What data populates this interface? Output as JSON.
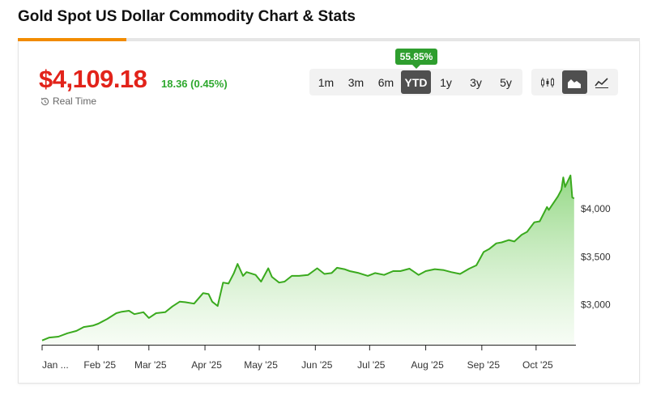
{
  "page": {
    "title": "Gold Spot US Dollar Commodity Chart & Stats"
  },
  "quote": {
    "price": "$4,109.18",
    "change": "18.36 (0.45%)",
    "realtime_label": "Real Time"
  },
  "range_selector": {
    "options": [
      "1m",
      "3m",
      "6m",
      "YTD",
      "1y",
      "3y",
      "5y"
    ],
    "selected": "YTD",
    "badge": "55.85%"
  },
  "chart_type_buttons": [
    {
      "icon": "candlestick-icon",
      "active": false
    },
    {
      "icon": "area-chart-icon",
      "active": true
    },
    {
      "icon": "line-chart-icon",
      "active": false
    }
  ],
  "colors": {
    "price": "#e2231a",
    "change": "#2ea82e",
    "line": "#3aaa1e",
    "fill_top": "#8fd67f",
    "active_button": "#4f4f4f",
    "accent": "#f28c00"
  },
  "chart_data": {
    "type": "area",
    "title": "",
    "xlabel": "",
    "ylabel": "",
    "x_tick_labels": [
      "Jan ...",
      "Feb '25",
      "Mar '25",
      "Apr '25",
      "May '25",
      "Jun '25",
      "Jul '25",
      "Aug '25",
      "Sep '25",
      "Oct '25"
    ],
    "y_ticks": [
      3000,
      3500,
      4000
    ],
    "y_tick_labels": [
      "$3,000",
      "$3,500",
      "$4,000"
    ],
    "y_axis_side": "right",
    "grid": false,
    "ylim": [
      2580,
      4450
    ],
    "series": [
      {
        "x": [
          "2025-01-01",
          "2025-01-05",
          "2025-01-10",
          "2025-01-15",
          "2025-01-20",
          "2025-01-24",
          "2025-01-29",
          "2025-02-01",
          "2025-02-06",
          "2025-02-11",
          "2025-02-14",
          "2025-02-18",
          "2025-02-21",
          "2025-02-26",
          "2025-03-01",
          "2025-03-05",
          "2025-03-10",
          "2025-03-14",
          "2025-03-18",
          "2025-03-21",
          "2025-03-26",
          "2025-03-31",
          "2025-04-03",
          "2025-04-05",
          "2025-04-08",
          "2025-04-11",
          "2025-04-14",
          "2025-04-17",
          "2025-04-19",
          "2025-04-22",
          "2025-04-24",
          "2025-04-29",
          "2025-05-02",
          "2025-05-06",
          "2025-05-08",
          "2025-05-12",
          "2025-05-15",
          "2025-05-19",
          "2025-05-23",
          "2025-05-28",
          "2025-06-02",
          "2025-06-06",
          "2025-06-10",
          "2025-06-13",
          "2025-06-17",
          "2025-06-20",
          "2025-06-25",
          "2025-06-30",
          "2025-07-04",
          "2025-07-09",
          "2025-07-14",
          "2025-07-18",
          "2025-07-23",
          "2025-07-28",
          "2025-08-01",
          "2025-08-06",
          "2025-08-11",
          "2025-08-15",
          "2025-08-20",
          "2025-08-25",
          "2025-08-29",
          "2025-09-02",
          "2025-09-05",
          "2025-09-09",
          "2025-09-12",
          "2025-09-16",
          "2025-09-19",
          "2025-09-23",
          "2025-09-26",
          "2025-09-30",
          "2025-10-03",
          "2025-10-07",
          "2025-10-08",
          "2025-10-13",
          "2025-10-15",
          "2025-10-16",
          "2025-10-17",
          "2025-10-20",
          "2025-10-21",
          "2025-10-22"
        ],
        "values": [
          2625,
          2655,
          2665,
          2700,
          2725,
          2765,
          2780,
          2800,
          2850,
          2910,
          2925,
          2935,
          2900,
          2920,
          2860,
          2910,
          2920,
          2980,
          3030,
          3025,
          3010,
          3120,
          3110,
          3030,
          2985,
          3230,
          3220,
          3330,
          3425,
          3300,
          3340,
          3310,
          3240,
          3380,
          3290,
          3230,
          3240,
          3300,
          3300,
          3310,
          3380,
          3320,
          3330,
          3385,
          3370,
          3350,
          3330,
          3300,
          3330,
          3310,
          3350,
          3350,
          3375,
          3310,
          3350,
          3370,
          3360,
          3340,
          3320,
          3375,
          3410,
          3550,
          3580,
          3640,
          3650,
          3675,
          3660,
          3730,
          3760,
          3860,
          3870,
          4020,
          3990,
          4130,
          4200,
          4330,
          4230,
          4350,
          4120,
          4109
        ]
      }
    ]
  }
}
